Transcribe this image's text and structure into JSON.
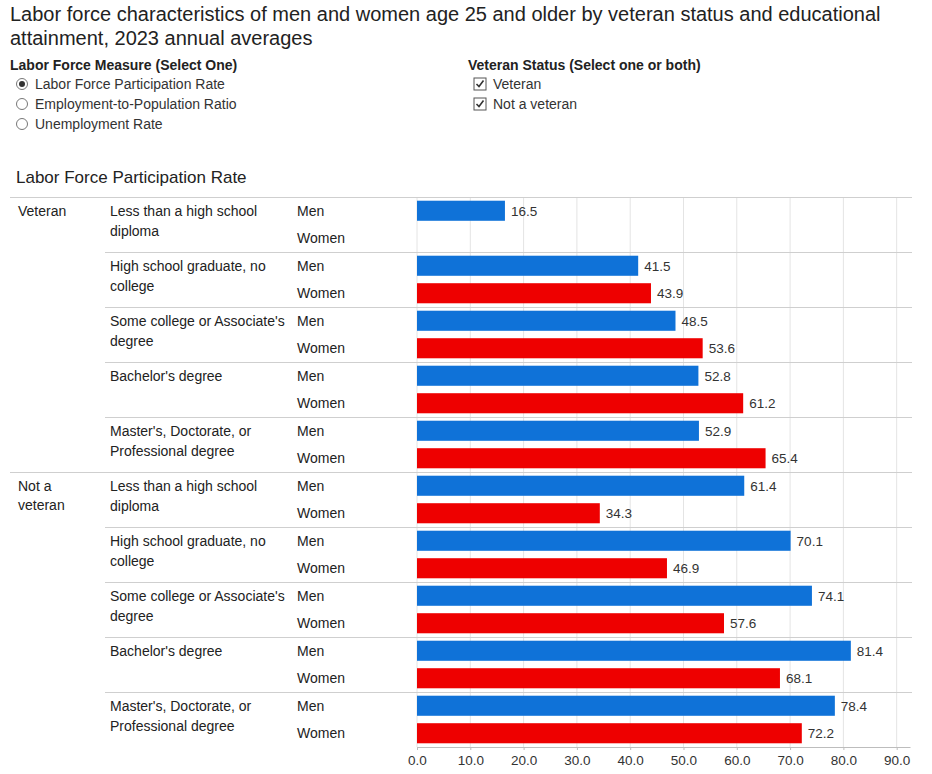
{
  "chart_data": {
    "type": "bar",
    "orientation": "horizontal",
    "title": "Labor force characteristics of men and women age 25 and older by veteran status and educational attainment, 2023 annual averages",
    "controls": [
      {
        "label": "Labor Force Measure (Select One)",
        "type": "radio",
        "options": [
          {
            "label": "Labor Force Participation Rate",
            "checked": true
          },
          {
            "label": "Employment-to-Population Ratio",
            "checked": false
          },
          {
            "label": "Unemployment Rate",
            "checked": false
          }
        ]
      },
      {
        "label": "Veteran Status (Select one or both)",
        "type": "checkbox",
        "options": [
          {
            "label": "Veteran",
            "checked": true
          },
          {
            "label": "Not a veteran",
            "checked": true
          }
        ]
      }
    ],
    "subtitle": "Labor Force Participation Rate",
    "categories": [
      "Less than a high school diploma",
      "High school graduate, no college",
      "Some college or Associate's degree",
      "Bachelor's degree",
      "Master's, Doctorate, or Professional degree"
    ],
    "panels": [
      {
        "name": "Veteran",
        "series": [
          {
            "name": "Men",
            "color": "#0f72d8",
            "values": [
              16.5,
              41.5,
              48.5,
              52.8,
              52.9
            ]
          },
          {
            "name": "Women",
            "color": "#ee0000",
            "values": [
              null,
              43.9,
              53.6,
              61.2,
              65.4
            ]
          }
        ]
      },
      {
        "name": "Not a veteran",
        "series": [
          {
            "name": "Men",
            "color": "#0f72d8",
            "values": [
              61.4,
              70.1,
              74.1,
              81.4,
              78.4
            ]
          },
          {
            "name": "Women",
            "color": "#ee0000",
            "values": [
              34.3,
              46.9,
              57.6,
              68.1,
              72.2
            ]
          }
        ]
      }
    ],
    "xlim": [
      0,
      92.5
    ],
    "xticks": [
      {
        "value": 0,
        "label": "0.0"
      },
      {
        "value": 10,
        "label": "10.0"
      },
      {
        "value": 20,
        "label": "20.0"
      },
      {
        "value": 30,
        "label": "30.0"
      },
      {
        "value": 40,
        "label": "40.0"
      },
      {
        "value": 50,
        "label": "50.0"
      },
      {
        "value": 60,
        "label": "60.0"
      },
      {
        "value": 70,
        "label": "70.0"
      },
      {
        "value": 80,
        "label": "80.0"
      },
      {
        "value": 90,
        "label": "90.0"
      }
    ],
    "grid": true,
    "data_labels": true
  }
}
